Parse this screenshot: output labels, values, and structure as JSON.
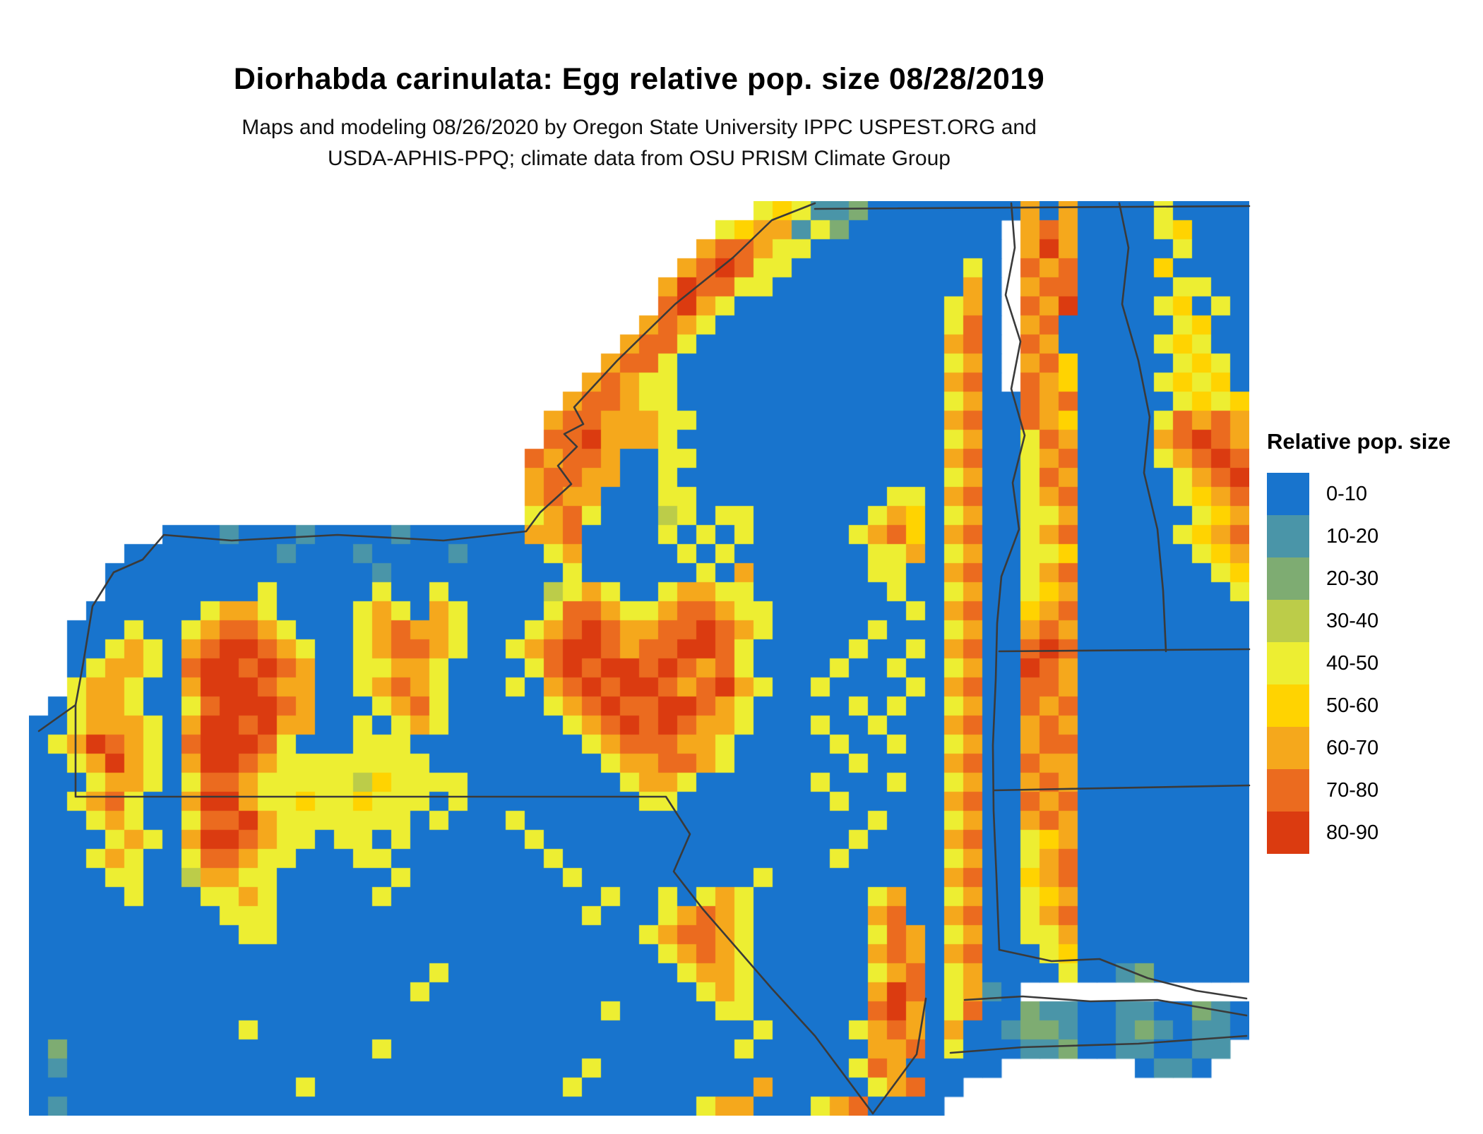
{
  "header": {
    "title": "Diorhabda carinulata: Egg relative pop. size 08/28/2019",
    "subtitle_line1": "Maps and modeling 08/26/2020 by Oregon State University IPPC USPEST.ORG and",
    "subtitle_line2": "USDA-APHIS-PPQ; climate data from OSU PRISM Climate Group"
  },
  "legend": {
    "title": "Relative pop. size",
    "classes": [
      {
        "label": "0-10",
        "color": "#1874CD"
      },
      {
        "label": "10-20",
        "color": "#4A95A8"
      },
      {
        "label": "20-30",
        "color": "#7EAC72"
      },
      {
        "label": "30-40",
        "color": "#BCCC49"
      },
      {
        "label": "40-50",
        "color": "#EDEE32"
      },
      {
        "label": "50-60",
        "color": "#FFD301"
      },
      {
        "label": "60-70",
        "color": "#F5A81C"
      },
      {
        "label": "70-80",
        "color": "#EB6B1F"
      },
      {
        "label": "80-90",
        "color": "#DB3B10"
      }
    ]
  },
  "map": {
    "no_data_color": "#FFFFFF",
    "boundary_color": "#3A3A3A",
    "grid": [
      "........ ........ ........ ........ ......45 41120000 00006060 00040000",
      "........ ........ ........ ........ ....4566 14200000 000.6760 00045000",
      "........ ........ ........ ........ ...67764 40000000 000.6860 00004000",
      "........ ........ ........ ........ ..678744 00000000 040.7670 00050000",
      "........ ........ ........ ........ .6877440 00000000 060.6770 00004400",
      "........ ........ ........ ........ .7864000 00000000 460.7680 00045040",
      "........ ........ ........ ........ 67640000 00000000 470.6700 00004500",
      "........ ........ ........ .......6 77400000 00000000 670.7600 00045400",
      "........ ........ ........ ......67 74000000 00000000 460.6750 00004540",
      "........ ........ ........ .....676 44000000 00000000 670.7650 00045450",
      "........ ........ ........ ....6776 44000000 00000000 46007670 00004545",
      "........ ........ ........ ...67766 64400000 00000000 67007650 00047676",
      "........ ........ ........ ...77866 64000000 00000000 46004760 00067876",
      "........ ........ ........ ..767760 04400000 00000000 67004670 00046787",
      "........ ........ ........ ..677660 04000000 00000000 46004760 00004678",
      "........ ........ ........ ..676600 04400000 00000440 67004670 00004567",
      "........ ........ ........ ..467400 03404400 00004650 46004460 00000456",
      ".......0 00100010 00010000 00667000 04040400 00046750 67004670 00004567",
      ".....000 00000100 01000010 00046000 00404000 00004460 46004450 00000456",
      "....0000 00000000 00100000 00004000 00040600 00004400 67004670 00000045",
      "....0000 00004000 00400400 00034640 04664400 00000400 46004560 00000004",
      "...00000 04664000 04640640 00047764 46776440 00000040 67005670 00000000",
      "..000400 46776400 04676640 00467876 67787640 00004000 46006760 00000000",
      "..004640 67887640 04677640 04678876 77887400 00040040 67007870 00000000",
      "..046640 78878760 04466400 00478788 78767400 00400400 46008760 00000000",
      "..466400 68887660 04676400 04067878 87678640 04000040 67007760 00000000",
      ".0466400 47888760 00467400 00046787 78876400 00040400 46007670 00000000",
      "00466640 68878660 04046400 00004678 78766400 04004000 67006760 00000000",
      "04687640 78887400 04440000 00000467 77664000 00400400 46006770 00000000",
      "00468640 68876444 44444000 00000046 67764000 00040000 67007660 00000000",
      "00046640 47764444 43544440 00000004 66400000 04000400 46006760 00000000",
      "00467400 68864454 45444040 00000000 44000000 00400000 67007670 00000000",
      "00046400 47786444 44440400 04000000 00000000 00004000 46006760 00000000",
      "00004640 68876440 44040000 00400000 00000000 00040000 67004560 00000000",
      "00046400 47764400 04400000 00040000 00000000 00400000 46004670 00000000",
      "00004400 36644000 00040000 00004000 00000040 00000000 67005670 00000000",
      "00000400 04464000 00400000 00000040 04046400 00004600 46004560 00000000",
      "00000000 00444000 00000000 00000400 04676400 00006700 67004670 00000000",
      "00000000 00044000 00000000 00000000 46776400 00004760 46004460 00000000",
      "00000000 00000000 00000000 00000000 04676400 00006760 67000450 00000000",
      "00000000 00000000 00000400 00000000 00466400 00004670 46000040 01200000",
      "00000000 00000000 00004000 00000000 00046400 00006870 4610.... ........",
      "00000000 00000000 00000000 00000040 00004400 00007860 47002110 01100210",
      "00000000 00040000 00000000 00000000 00000040 00046760 60012210 01210110",
      "02000000 00000000 00400000 00000000 00000400 00006670 40001120 0110011.",
      "01000000 00000000 00000000 00000400 00000000 00047600 000..... ..0110..",
      "00000000 00000040 00000000 00004000 00000060 00004670 0....... ........",
      "01000000 00000000 00000000 00000000 00046600 04670000 ........ ........"
    ],
    "boundaries": [
      "M1154,288 L1093,312 L1038,365 L956,431 L874,511 L813,577 L826,601 L799,615 L817,633 L790,660 L809,686 L765,726 L745,753 L628,766 L478,758 L328,766 L232,758 L202,793 L161,811 L131,859 L118,939 L107,999 L107,1129 L943,1129 L977,1182 L954,1235 L995,1288 L1041,1341 L1093,1401 L1154,1468 L1236,1578",
      "M107,999 L55,1036",
      "M1154,296 L1769,292",
      "M1432,288 L1437,351 L1424,418 L1445,484 L1432,551 L1451,617 L1434,684 L1443,750 L1418,817 L1412,883 L1410,963 L1406,1056 L1407,1149 L1411,1242 L1415,1346",
      "M1585,288 L1598,351 L1589,431 L1612,511 L1628,591 L1620,670 L1639,750 L1647,837 L1651,923",
      "M1415,923 L1769,920",
      "M1407,1120 L1769,1113",
      "M1415,1346 L1489,1362 L1557,1359 L1625,1386 L1694,1404 L1765,1415",
      "M1366,1417 L1448,1412 L1544,1419 L1639,1417 L1765,1439",
      "M1765,1468 L1612,1479 L1448,1484 L1346,1492",
      "M1311,1415 L1298,1494 L1236,1578"
    ]
  }
}
